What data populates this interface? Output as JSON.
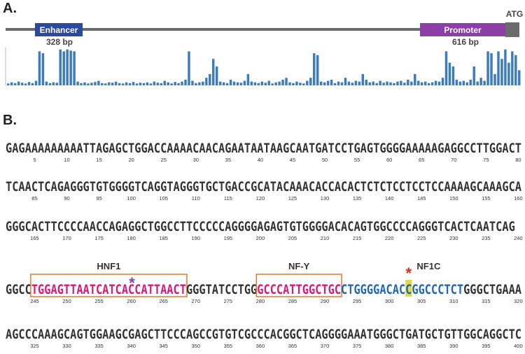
{
  "panel_a": {
    "label": "A.",
    "enhancer": {
      "label": "Enhancer",
      "size": "328 bp",
      "color": "#2c4a9b"
    },
    "promoter": {
      "label": "Promoter",
      "size": "616 bp",
      "color": "#8c3fa6"
    },
    "start_codon": "ATG",
    "track_color": "#3b7cc0",
    "conservation": [
      0.05,
      0.08,
      0.06,
      0.1,
      0.07,
      0.05,
      0.09,
      0.06,
      0.12,
      0.9,
      0.85,
      0.1,
      0.06,
      0.08,
      0.07,
      0.95,
      0.9,
      0.95,
      0.92,
      0.9,
      0.1,
      0.06,
      0.08,
      0.05,
      0.07,
      0.09,
      0.12,
      0.06,
      0.05,
      0.08,
      0.07,
      0.1,
      0.06,
      0.05,
      0.08,
      0.06,
      0.09,
      0.05,
      0.07,
      0.06,
      0.08,
      0.05,
      0.1,
      0.07,
      0.06,
      0.12,
      0.08,
      0.05,
      0.09,
      0.06,
      0.1,
      0.15,
      0.9,
      0.12,
      0.06,
      0.08,
      0.1,
      0.2,
      0.3,
      0.7,
      0.5,
      0.1,
      0.08,
      0.06,
      0.15,
      0.1,
      0.08,
      0.07,
      0.12,
      0.3,
      0.1,
      0.08,
      0.06,
      0.1,
      0.07,
      0.12,
      0.05,
      0.08,
      0.1,
      0.15,
      0.2,
      0.08,
      0.06,
      0.1,
      0.07,
      0.05,
      0.12,
      0.2,
      0.85,
      0.8,
      0.1,
      0.08,
      0.12,
      0.15,
      0.06,
      0.1,
      0.08,
      0.2,
      0.1,
      0.07,
      0.12,
      0.1,
      0.3,
      0.15,
      0.08,
      0.1,
      0.06,
      0.12,
      0.07,
      0.1,
      0.08,
      0.06,
      0.1,
      0.12,
      0.07,
      0.15,
      0.1,
      0.3,
      0.12,
      0.08,
      0.1,
      0.06,
      0.08,
      0.12,
      0.1,
      0.2,
      0.9,
      0.6,
      0.5,
      0.15,
      0.1,
      0.12,
      0.08,
      0.15,
      0.5,
      0.1,
      0.2,
      0.12,
      0.9,
      0.85,
      0.3,
      0.9,
      0.7,
      0.95,
      0.6,
      0.9,
      0.8,
      0.4
    ]
  },
  "panel_b": {
    "label": "B.",
    "rows": [
      {
        "sequence": "GAGAAAAAAAAATTAGAGCTGGACCAAAACAACAGAATAATAAGCAATGATCCTGAGTGGGGAAAAAGAGGCCTTGGACT",
        "ticks": [
          5,
          10,
          15,
          20,
          25,
          30,
          35,
          40,
          45,
          50,
          55,
          60,
          65,
          70,
          75,
          80
        ]
      },
      {
        "sequence": "TCAACTCAGAGGGTGTGGGGTCAGGTAGGGTGCTGACCGCATACAAACACCACACTCTCTCCTCCTCCAAAAGCAAAGCA",
        "ticks": [
          85,
          90,
          95,
          100,
          105,
          110,
          115,
          120,
          125,
          130,
          135,
          140,
          145,
          150,
          155,
          160
        ]
      },
      {
        "sequence": "GGGCACTTCCCCAACCAGAGGCTGGCCTTCCCCCAGGGGAGAGTGTGGGGACACAGTGGCCCCAGGGTCACTCAATCAG",
        "ticks": [
          165,
          170,
          175,
          180,
          185,
          190,
          195,
          200,
          205,
          210,
          215,
          220,
          225,
          230,
          235,
          240
        ]
      },
      {
        "segments": [
          {
            "text": "GGCC",
            "color": "#333333"
          },
          {
            "text": "TGGAGTTAATCATCACCATTAACT",
            "color": "#d6197a",
            "label": "HNF1",
            "box": true,
            "mark": "*",
            "mark_color": "#8c3fa6"
          },
          {
            "text": "GGGTATCCTGG",
            "color": "#333333"
          },
          {
            "text": "GCCCATTGGCTGC",
            "color": "#d6197a",
            "label": "NF-Y",
            "box": true
          },
          {
            "text": "CTGGGGACAC",
            "color": "#2166b0"
          },
          {
            "text": "C",
            "color": "#2166b0",
            "highlight": "#e3d84a",
            "label": "NF1C",
            "mark": "*",
            "mark_color": "#e0251b"
          },
          {
            "text": "GGCCCTCT",
            "color": "#2166b0"
          },
          {
            "text": "GGGCTGAAA",
            "color": "#333333"
          }
        ],
        "ticks": [
          245,
          250,
          255,
          260,
          265,
          270,
          275,
          280,
          285,
          290,
          295,
          300,
          305,
          310,
          315,
          320
        ]
      },
      {
        "sequence": "AGCCCAAAGCAGTGGAAGCGAGCTTCCCAGCCGTGTCGCCCACGGCTCAGGGGAAATGGGCTGATGCTGTTGGCAGGCTC",
        "ticks": [
          325,
          330,
          335,
          340,
          345,
          350,
          355,
          360,
          365,
          370,
          375,
          380,
          385,
          390,
          395,
          400
        ]
      }
    ]
  }
}
